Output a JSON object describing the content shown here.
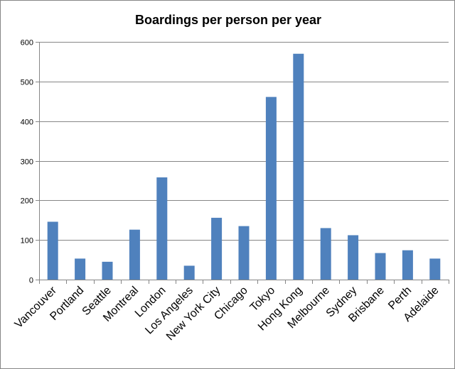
{
  "chart_data": {
    "type": "bar",
    "title": "Boardings per person per year",
    "xlabel": "",
    "ylabel": "",
    "ylim": [
      0,
      600
    ],
    "yticks": [
      0,
      100,
      200,
      300,
      400,
      500,
      600
    ],
    "grid": true,
    "legend": "none",
    "bar_color": "#4F81BD",
    "categories": [
      "Vancouver",
      "Portland",
      "Seattle",
      "Montreal",
      "London",
      "Los Angeles",
      "New York City",
      "Chicago",
      "Tokyo",
      "Hong Kong",
      "Melbourne",
      "Sydney",
      "Brisbane",
      "Perth",
      "Adelaide"
    ],
    "values": [
      146,
      53,
      45,
      126,
      258,
      35,
      156,
      135,
      461,
      570,
      130,
      112,
      67,
      74,
      53
    ]
  }
}
